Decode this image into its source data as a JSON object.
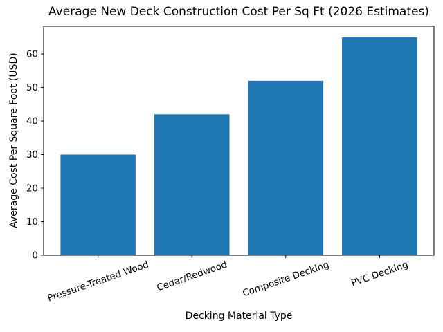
{
  "chart_data": {
    "type": "bar",
    "title": "Average New Deck Construction Cost Per Sq Ft (2026 Estimates)",
    "xlabel": "Decking Material Type",
    "ylabel": "Average Cost Per Square Foot (USD)",
    "categories": [
      "Pressure-Treated Wood",
      "Cedar/Redwood",
      "Composite Decking",
      "PVC Decking"
    ],
    "values": [
      30,
      42,
      52,
      65
    ],
    "yticks": [
      0,
      10,
      20,
      30,
      40,
      50,
      60
    ],
    "ylim": [
      0,
      68.25
    ],
    "bar_color": "#1f77b4",
    "axis_color": "#000000",
    "background_color": "#ffffff",
    "grid": false,
    "legend": "none",
    "x_tick_rotation_deg": 19
  }
}
